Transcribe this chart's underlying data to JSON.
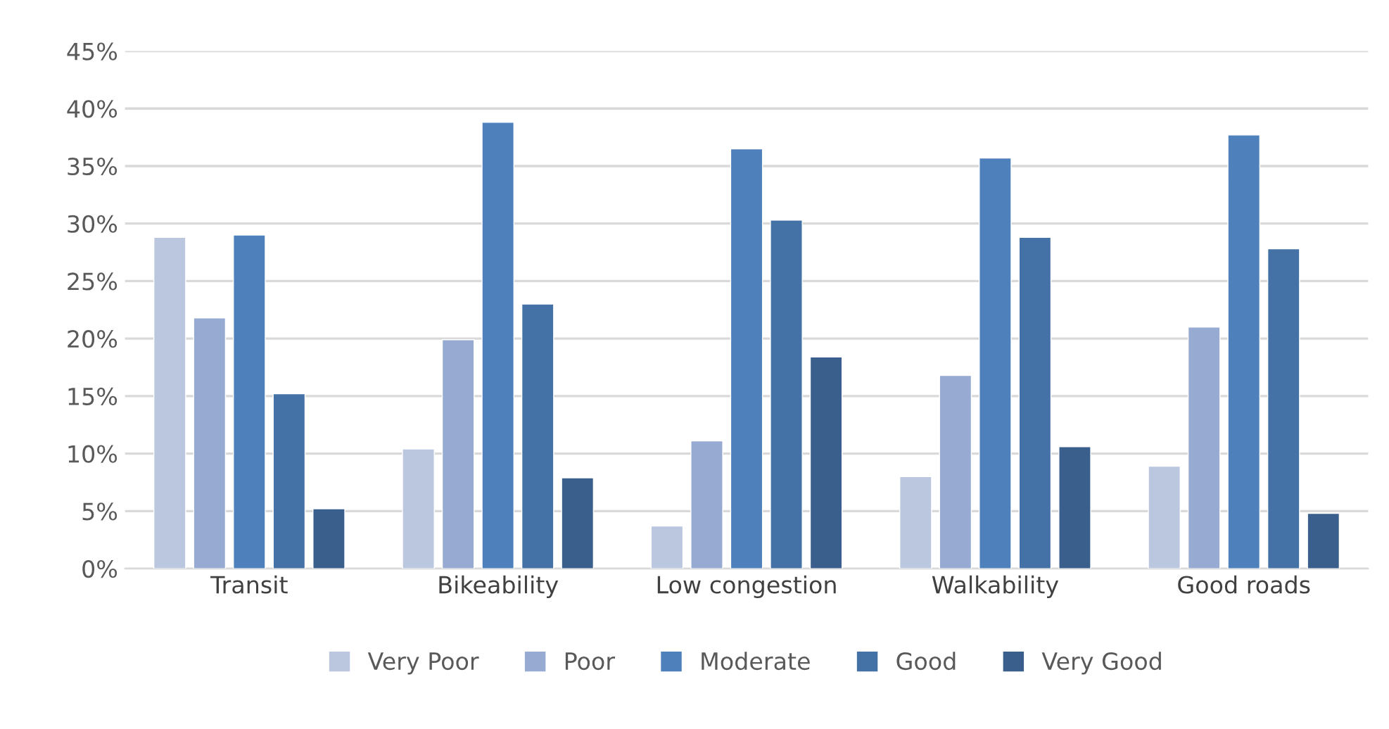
{
  "chart_data": {
    "type": "bar",
    "categories": [
      "Transit",
      "Bikeability",
      "Low congestion",
      "Walkability",
      "Good roads"
    ],
    "series": [
      {
        "name": "Very Poor",
        "color": "#bbc7df",
        "values": [
          28.8,
          10.4,
          3.7,
          8.0,
          8.9
        ]
      },
      {
        "name": "Poor",
        "color": "#97aad1",
        "values": [
          21.8,
          19.9,
          11.1,
          16.8,
          21.0
        ]
      },
      {
        "name": "Moderate",
        "color": "#4e80bb",
        "values": [
          29.0,
          38.8,
          36.5,
          35.7,
          37.7
        ]
      },
      {
        "name": "Good",
        "color": "#4472a6",
        "values": [
          15.2,
          23.0,
          30.3,
          28.8,
          27.8
        ]
      },
      {
        "name": "Very Good",
        "color": "#3b5f8d",
        "values": [
          5.2,
          7.9,
          18.4,
          10.6,
          4.8
        ]
      }
    ],
    "ylim": [
      0,
      45
    ],
    "yticks": [
      {
        "value": 0,
        "label": "0%"
      },
      {
        "value": 5,
        "label": "5%"
      },
      {
        "value": 10,
        "label": "10%"
      },
      {
        "value": 15,
        "label": "15%"
      },
      {
        "value": 20,
        "label": "20%"
      },
      {
        "value": 25,
        "label": "25%"
      },
      {
        "value": 30,
        "label": "30%"
      },
      {
        "value": 35,
        "label": "35%"
      },
      {
        "value": 40,
        "label": "40%"
      },
      {
        "value": 45,
        "label": "45%"
      }
    ],
    "grid": "y",
    "legend": "bottom"
  }
}
